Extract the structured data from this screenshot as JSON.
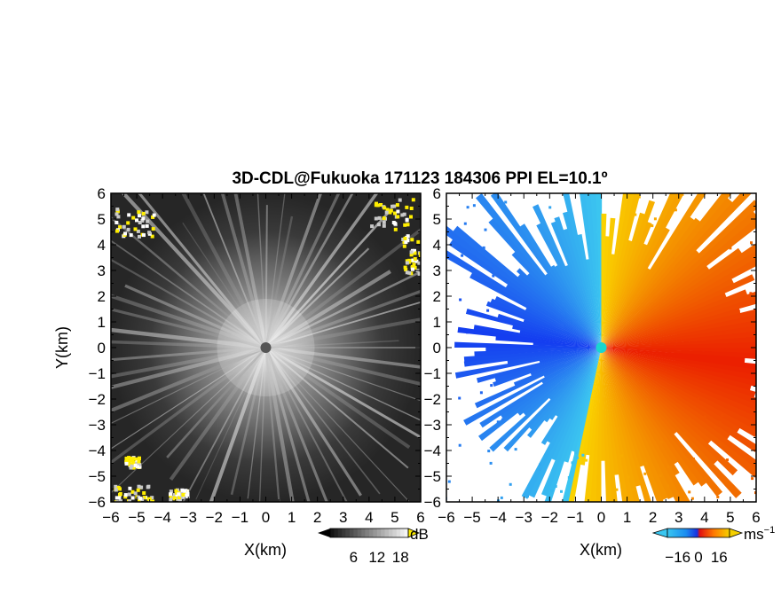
{
  "title": "3D-CDL@Fukuoka 171123 184306 PPI EL=10.1º",
  "chart_data": [
    {
      "type": "heatmap",
      "name": "reflectivity-ppi",
      "xlabel": "X(km)",
      "ylabel": "Y(km)",
      "xlim": [
        -6,
        6
      ],
      "ylim": [
        -6,
        6
      ],
      "xticks": [
        "−6",
        "−5",
        "−4",
        "−3",
        "−2",
        "−1",
        "0",
        "1",
        "2",
        "3",
        "4",
        "5",
        "6"
      ],
      "yticks": [
        "6",
        "5",
        "4",
        "3",
        "2",
        "1",
        "0",
        "−1",
        "−2",
        "−3",
        "−4",
        "−5",
        "−6"
      ],
      "colorbar": {
        "unit": "dB",
        "tick_labels": [
          "6",
          "12",
          "18"
        ],
        "ticks": [
          6,
          12,
          18
        ],
        "range": [
          0,
          20
        ],
        "colormap": "grayscale",
        "over_color": "#ffee00"
      },
      "grid": false
    },
    {
      "type": "heatmap",
      "name": "doppler-velocity-ppi",
      "xlabel": "X(km)",
      "xlim": [
        -6,
        6
      ],
      "ylim": [
        -6,
        6
      ],
      "xticks": [
        "−6",
        "−5",
        "−4",
        "−3",
        "−2",
        "−1",
        "0",
        "1",
        "2",
        "3",
        "4",
        "5",
        "6"
      ],
      "yticks": [
        "6",
        "5",
        "4",
        "3",
        "2",
        "1",
        "0",
        "−1",
        "−2",
        "−3",
        "−4",
        "−5",
        "−6"
      ],
      "colorbar": {
        "unit": "ms",
        "unit_sup": "−1",
        "tick_labels": [
          "−16",
          "0",
          "16"
        ],
        "ticks": [
          -16,
          0,
          16
        ],
        "range": [
          -24,
          24
        ],
        "colormap": "blue-red-yellow"
      },
      "grid": false
    }
  ]
}
